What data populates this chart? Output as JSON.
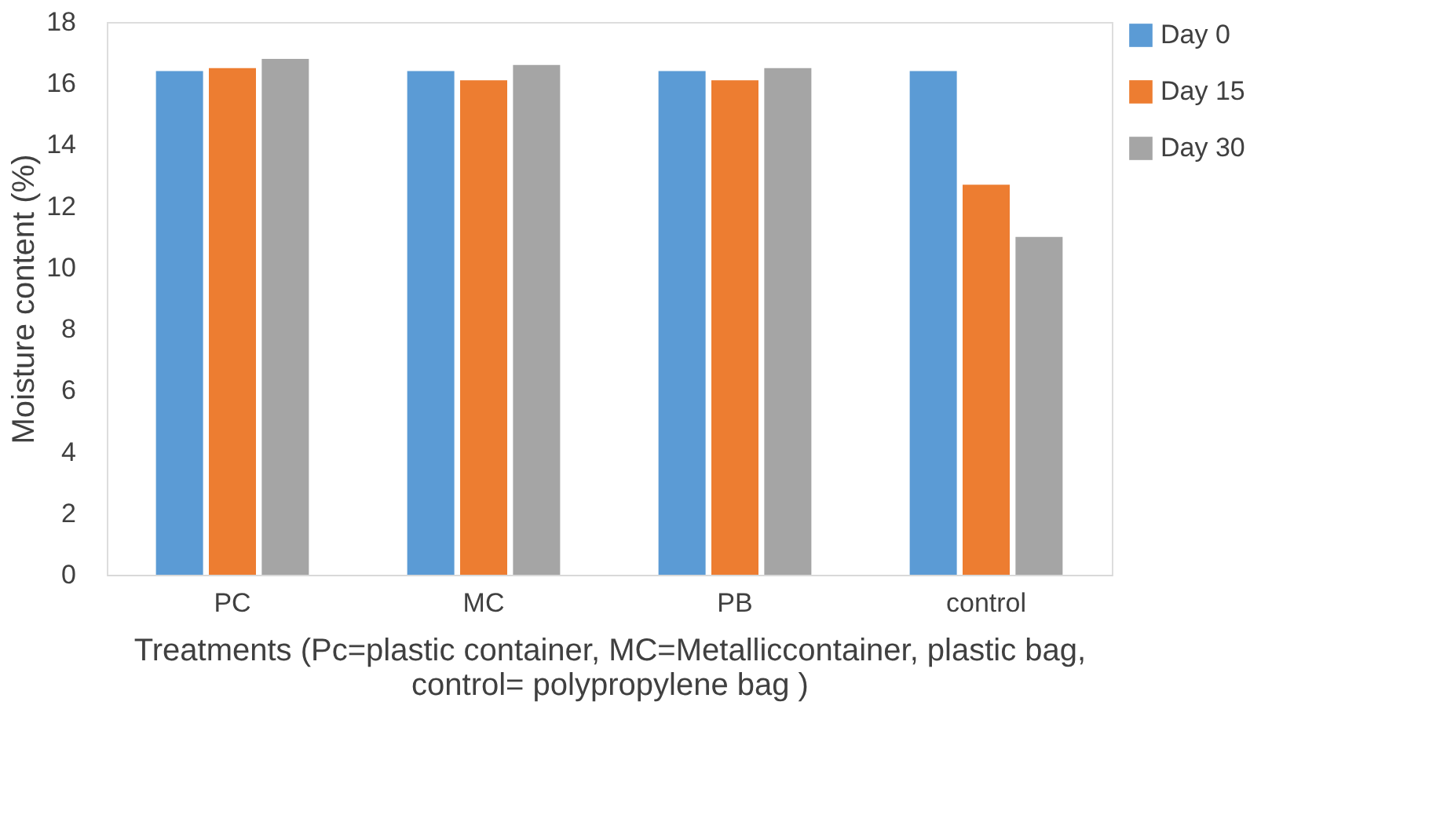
{
  "chart_data": {
    "type": "bar",
    "xlabel": "Treatments (Pc=plastic container, MC=Metalliccontainer, plastic bag, control= polypropylene bag )",
    "ylabel": "Moisture content (%)",
    "categories": [
      "PC",
      "MC",
      "PB",
      "control"
    ],
    "series": [
      {
        "name": "Day 0",
        "color": "#5b9bd5",
        "values": [
          16.4,
          16.4,
          16.4,
          16.4
        ]
      },
      {
        "name": "Day 15",
        "color": "#ed7d31",
        "values": [
          16.5,
          16.1,
          16.1,
          12.7
        ]
      },
      {
        "name": "Day 30",
        "color": "#a5a5a5",
        "values": [
          16.8,
          16.6,
          16.5,
          11.0
        ]
      }
    ],
    "ylim": [
      0,
      18
    ],
    "yticks": [
      0,
      2,
      4,
      6,
      8,
      10,
      12,
      14,
      16,
      18
    ],
    "grid": false,
    "legend": "right"
  }
}
